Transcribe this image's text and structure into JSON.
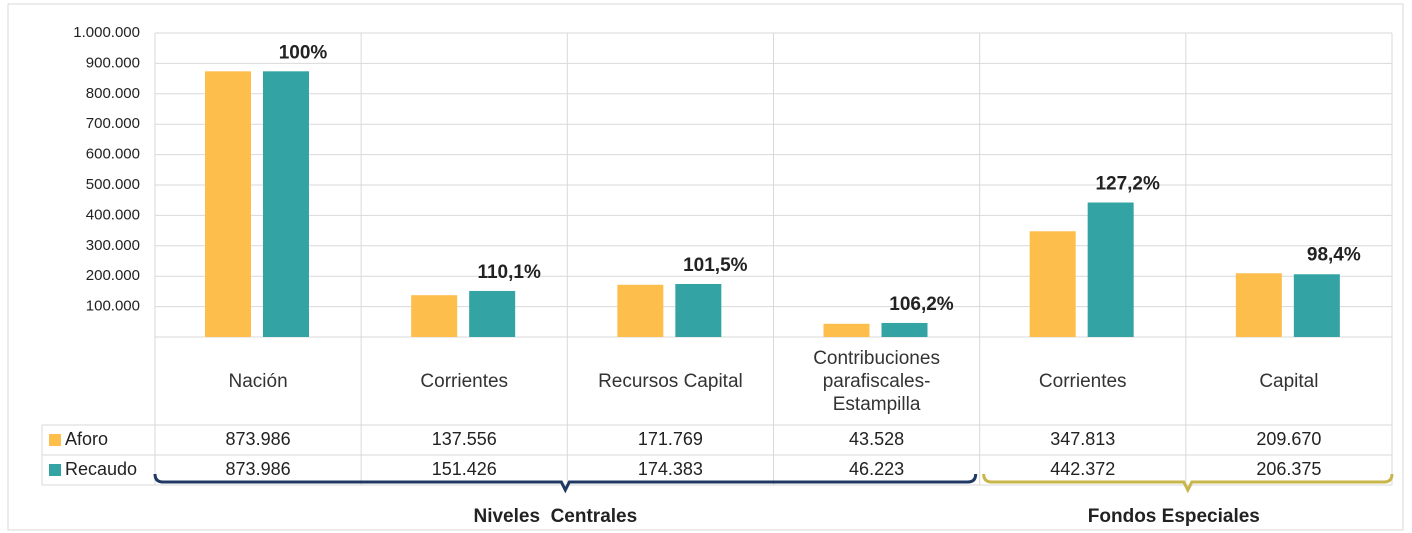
{
  "chart_data": {
    "type": "bar",
    "categories": [
      "Nación",
      "Corrientes",
      "Recursos Capital",
      "Contribuciones parafiscales-Estampilla",
      "Corrientes",
      "Capital"
    ],
    "series": [
      {
        "name": "Aforo",
        "color": "#fdbe4b",
        "values": [
          873986,
          137556,
          171769,
          43528,
          347813,
          209670
        ],
        "value_labels": [
          "873.986",
          "137.556",
          "171.769",
          "43.528",
          "347.813",
          "209.670"
        ]
      },
      {
        "name": "Recaudo",
        "color": "#33a3a3",
        "values": [
          873986,
          151426,
          174383,
          46223,
          442372,
          206375
        ],
        "value_labels": [
          "873.986",
          "151.426",
          "174.383",
          "46.223",
          "442.372",
          "206.375"
        ]
      }
    ],
    "ratio_labels": [
      "100%",
      "110,1%",
      "101,5%",
      "106,2%",
      "127,2%",
      "98,4%"
    ],
    "groups": [
      {
        "label": "Niveles  Centrales",
        "color": "#1f3864"
      },
      {
        "label": "Fondos Especiales",
        "color": "#c8b64a"
      }
    ],
    "ylim": [
      0,
      1000000
    ],
    "yticks": [
      {
        "value": 100000,
        "label": "100.000"
      },
      {
        "value": 200000,
        "label": "200.000"
      },
      {
        "value": 300000,
        "label": "300.000"
      },
      {
        "value": 400000,
        "label": "400.000"
      },
      {
        "value": 500000,
        "label": "500.000"
      },
      {
        "value": 600000,
        "label": "600.000"
      },
      {
        "value": 700000,
        "label": "700.000"
      },
      {
        "value": 800000,
        "label": "800.000"
      },
      {
        "value": 900000,
        "label": "900.000"
      },
      {
        "value": 1000000,
        "label": "1.000.000"
      }
    ],
    "grid": true
  }
}
